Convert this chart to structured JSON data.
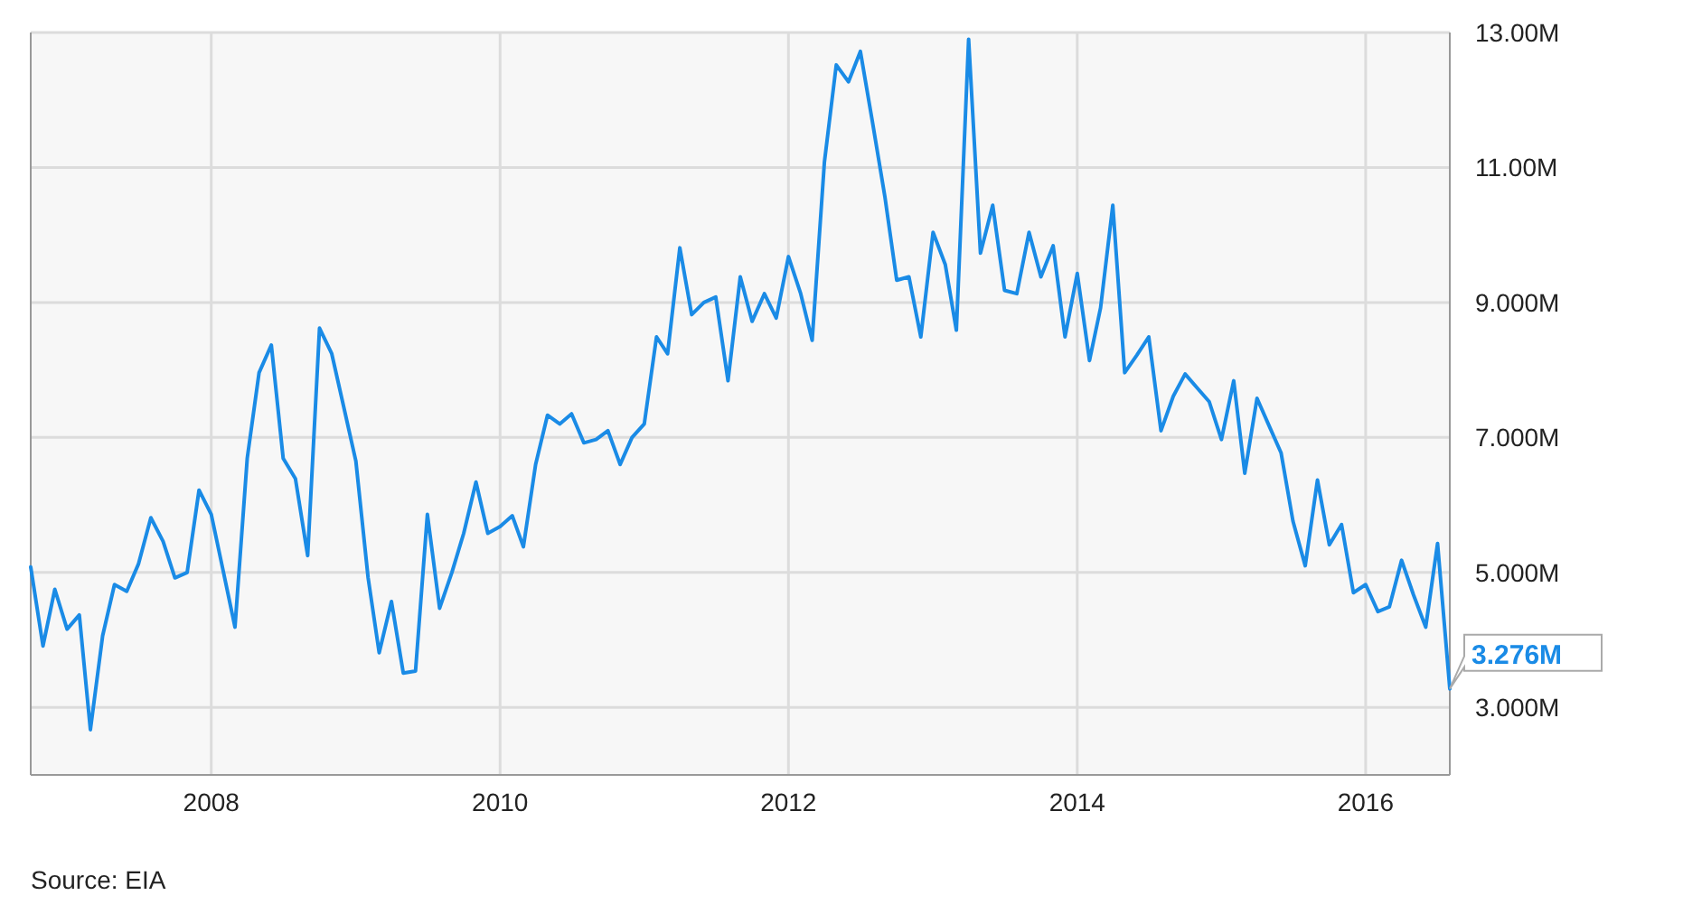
{
  "chart_data": {
    "type": "line",
    "x": [
      "2006-10",
      "2006-11",
      "2006-12",
      "2007-01",
      "2007-02",
      "2007-03",
      "2007-04",
      "2007-05",
      "2007-06",
      "2007-07",
      "2007-08",
      "2007-09",
      "2007-10",
      "2007-11",
      "2007-12",
      "2008-01",
      "2008-02",
      "2008-03",
      "2008-04",
      "2008-05",
      "2008-06",
      "2008-07",
      "2008-08",
      "2008-09",
      "2008-10",
      "2008-11",
      "2008-12",
      "2009-01",
      "2009-02",
      "2009-03",
      "2009-04",
      "2009-05",
      "2009-06",
      "2009-07",
      "2009-08",
      "2009-09",
      "2009-10",
      "2009-11",
      "2009-12",
      "2010-01",
      "2010-02",
      "2010-03",
      "2010-04",
      "2010-05",
      "2010-06",
      "2010-07",
      "2010-08",
      "2010-09",
      "2010-10",
      "2010-11",
      "2010-12",
      "2011-01",
      "2011-02",
      "2011-03",
      "2011-04",
      "2011-05",
      "2011-06",
      "2011-07",
      "2011-08",
      "2011-09",
      "2011-10",
      "2011-11",
      "2011-12",
      "2012-01",
      "2012-02",
      "2012-03",
      "2012-04",
      "2012-05",
      "2012-06",
      "2012-07",
      "2012-08",
      "2012-09",
      "2012-10",
      "2012-11",
      "2012-12",
      "2013-01",
      "2013-02",
      "2013-03",
      "2013-04",
      "2013-05",
      "2013-06",
      "2013-07",
      "2013-08",
      "2013-09",
      "2013-10",
      "2013-11",
      "2013-12",
      "2014-01",
      "2014-02",
      "2014-03",
      "2014-04",
      "2014-05",
      "2014-06",
      "2014-07",
      "2014-08",
      "2014-09",
      "2014-10",
      "2014-11",
      "2014-12",
      "2015-01",
      "2015-02",
      "2015-03",
      "2015-04",
      "2015-05",
      "2015-06",
      "2015-07",
      "2015-08",
      "2015-09",
      "2015-10",
      "2015-11",
      "2015-12",
      "2016-01",
      "2016-02",
      "2016-03",
      "2016-04",
      "2016-05",
      "2016-06",
      "2016-07",
      "2016-08"
    ],
    "series": [
      {
        "color": "#1a8be6",
        "values": [
          5.08,
          3.91,
          4.75,
          4.16,
          4.37,
          2.67,
          4.06,
          4.82,
          4.72,
          5.13,
          5.81,
          5.46,
          4.92,
          5.0,
          6.22,
          5.86,
          5.0,
          4.19,
          6.69,
          7.96,
          8.37,
          6.69,
          6.39,
          5.25,
          8.62,
          8.24,
          7.46,
          6.65,
          4.92,
          3.81,
          4.57,
          3.51,
          3.54,
          5.86,
          4.47,
          5.0,
          5.58,
          6.34,
          5.58,
          5.68,
          5.84,
          5.38,
          6.6,
          7.33,
          7.2,
          7.35,
          6.92,
          6.97,
          7.1,
          6.6,
          7.0,
          7.2,
          8.49,
          8.24,
          9.81,
          8.82,
          9.0,
          9.08,
          7.84,
          9.38,
          8.72,
          9.13,
          8.77,
          9.68,
          9.13,
          8.44,
          11.08,
          12.52,
          12.27,
          12.72,
          11.66,
          10.57,
          9.33,
          9.38,
          8.49,
          10.04,
          9.56,
          8.59,
          12.9,
          9.73,
          10.44,
          9.18,
          9.13,
          10.04,
          9.38,
          9.84,
          8.49,
          9.43,
          8.14,
          8.92,
          10.44,
          7.96,
          8.22,
          8.49,
          7.1,
          7.61,
          7.94,
          7.73,
          7.53,
          6.97,
          7.84,
          6.47,
          7.58,
          7.18,
          6.77,
          5.76,
          5.1,
          6.37,
          5.41,
          5.71,
          4.7,
          4.82,
          4.42,
          4.49,
          5.18,
          4.67,
          4.19,
          5.43,
          3.276
        ]
      }
    ],
    "xlim": [
      "2006-10",
      "2016-08"
    ],
    "xticks": [
      {
        "value": "2008",
        "label": "2008"
      },
      {
        "value": "2010",
        "label": "2010"
      },
      {
        "value": "2012",
        "label": "2012"
      },
      {
        "value": "2014",
        "label": "2014"
      },
      {
        "value": "2016",
        "label": "2016"
      }
    ],
    "ylim": [
      2,
      13
    ],
    "yticks": [
      {
        "value": 3,
        "label": "3.000M"
      },
      {
        "value": 5,
        "label": "5.000M"
      },
      {
        "value": 7,
        "label": "7.000M"
      },
      {
        "value": 9,
        "label": "9.000M"
      },
      {
        "value": 11,
        "label": "11.00M"
      },
      {
        "value": 13,
        "label": "13.00M"
      }
    ],
    "grid": true,
    "annotations": [
      {
        "text": "3.276M",
        "x": "2016-08",
        "y": 3.276
      },
      "Source: EIA"
    ]
  }
}
